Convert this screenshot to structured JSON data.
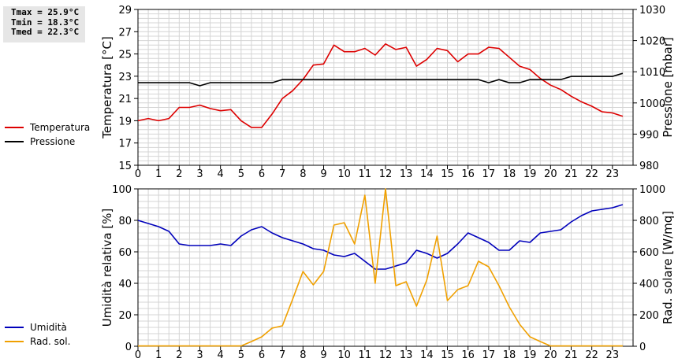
{
  "stats": {
    "tmax": "Tmax = 25.9°C",
    "tmin": "Tmin = 18.3°C",
    "tmed": "Tmed = 22.3°C"
  },
  "legend_top": [
    {
      "label": "Temperatura",
      "color": "#dd0000"
    },
    {
      "label": "Pressione",
      "color": "#000000"
    }
  ],
  "legend_bottom": [
    {
      "label": "Umidità",
      "color": "#0000bb"
    },
    {
      "label": "Rad. sol.",
      "color": "#f0a000"
    }
  ],
  "chart_data": [
    {
      "type": "line",
      "x": [
        0,
        0.5,
        1,
        1.5,
        2,
        2.5,
        3,
        3.5,
        4,
        4.5,
        5,
        5.5,
        6,
        6.5,
        7,
        7.5,
        8,
        8.5,
        9,
        9.5,
        10,
        10.5,
        11,
        11.5,
        12,
        12.5,
        13,
        13.5,
        14,
        14.5,
        15,
        15.5,
        16,
        16.5,
        17,
        17.5,
        18,
        18.5,
        19,
        19.5,
        20,
        20.5,
        21,
        21.5,
        22,
        22.5,
        23,
        23.5
      ],
      "xlim": [
        0,
        24
      ],
      "xticks": [
        0,
        1,
        2,
        3,
        4,
        5,
        6,
        7,
        8,
        9,
        10,
        11,
        12,
        13,
        14,
        15,
        16,
        17,
        18,
        19,
        20,
        21,
        22,
        23
      ],
      "ylabel": "Temperatura [°C]",
      "ylim": [
        15,
        29
      ],
      "yticks": [
        15,
        17,
        19,
        21,
        23,
        25,
        27,
        29
      ],
      "y2label": "Pressione [mbar]",
      "y2lim": [
        980,
        1030
      ],
      "y2ticks": [
        980,
        990,
        1000,
        1010,
        1020,
        1030
      ],
      "grid": true,
      "series": [
        {
          "name": "Temperatura",
          "color": "#dd0000",
          "axis": "left",
          "values": [
            19.0,
            19.2,
            19.0,
            19.2,
            20.2,
            20.2,
            20.4,
            20.1,
            19.9,
            20.0,
            19.0,
            18.4,
            18.4,
            19.6,
            21.0,
            21.7,
            22.7,
            24.0,
            24.1,
            25.8,
            25.2,
            25.2,
            25.5,
            24.9,
            25.9,
            25.4,
            25.6,
            23.9,
            24.5,
            25.5,
            25.3,
            24.3,
            25.0,
            25.0,
            25.6,
            25.5,
            24.7,
            23.9,
            23.6,
            22.8,
            22.2,
            21.8,
            21.2,
            20.7,
            20.3,
            19.8,
            19.7,
            19.4
          ]
        },
        {
          "name": "Pressione",
          "color": "#000000",
          "axis": "right",
          "values": [
            1006.5,
            1006.5,
            1006.5,
            1006.5,
            1006.5,
            1006.5,
            1005.5,
            1006.5,
            1006.5,
            1006.5,
            1006.5,
            1006.5,
            1006.5,
            1006.5,
            1007.5,
            1007.5,
            1007.5,
            1007.5,
            1007.5,
            1007.5,
            1007.5,
            1007.5,
            1007.5,
            1007.5,
            1007.5,
            1007.5,
            1007.5,
            1007.5,
            1007.5,
            1007.5,
            1007.5,
            1007.5,
            1007.5,
            1007.5,
            1006.5,
            1007.5,
            1006.5,
            1006.5,
            1007.5,
            1007.5,
            1007.5,
            1007.5,
            1008.5,
            1008.5,
            1008.5,
            1008.5,
            1008.5,
            1009.5
          ]
        }
      ]
    },
    {
      "type": "line",
      "x": [
        0,
        0.5,
        1,
        1.5,
        2,
        2.5,
        3,
        3.5,
        4,
        4.5,
        5,
        5.5,
        6,
        6.5,
        7,
        7.5,
        8,
        8.5,
        9,
        9.5,
        10,
        10.5,
        11,
        11.5,
        12,
        12.5,
        13,
        13.5,
        14,
        14.5,
        15,
        15.5,
        16,
        16.5,
        17,
        17.5,
        18,
        18.5,
        19,
        19.5,
        20,
        20.5,
        21,
        21.5,
        22,
        22.5,
        23,
        23.5
      ],
      "xlim": [
        0,
        24
      ],
      "xticks": [
        0,
        1,
        2,
        3,
        4,
        5,
        6,
        7,
        8,
        9,
        10,
        11,
        12,
        13,
        14,
        15,
        16,
        17,
        18,
        19,
        20,
        21,
        22,
        23
      ],
      "ylabel": "Umidità relativa [%]",
      "ylim": [
        0,
        100
      ],
      "yticks": [
        0,
        20,
        40,
        60,
        80,
        100
      ],
      "y2label": "Rad. solare [W/mq]",
      "y2lim": [
        0,
        1000
      ],
      "y2ticks": [
        0,
        200,
        400,
        600,
        800,
        1000
      ],
      "grid": true,
      "series": [
        {
          "name": "Umidità",
          "color": "#0000bb",
          "axis": "left",
          "values": [
            80,
            78,
            76,
            73,
            65,
            64,
            64,
            64,
            65,
            64,
            70,
            74,
            76,
            72,
            69,
            67,
            65,
            62,
            61,
            58,
            57,
            59,
            54,
            49,
            49,
            51,
            53,
            61,
            59,
            56,
            59,
            65,
            72,
            69,
            66,
            61,
            61,
            67,
            66,
            72,
            73,
            74,
            79,
            83,
            86,
            87,
            88,
            90
          ]
        },
        {
          "name": "Rad. sol.",
          "color": "#f0a000",
          "axis": "right",
          "values": [
            2,
            2,
            2,
            2,
            2,
            2,
            2,
            2,
            2,
            2,
            2,
            30,
            60,
            115,
            130,
            300,
            475,
            390,
            475,
            770,
            785,
            650,
            960,
            400,
            1010,
            385,
            410,
            255,
            420,
            700,
            290,
            360,
            385,
            540,
            505,
            385,
            250,
            140,
            60,
            30,
            2,
            2,
            2,
            2,
            2,
            2,
            2,
            2
          ]
        }
      ]
    }
  ]
}
